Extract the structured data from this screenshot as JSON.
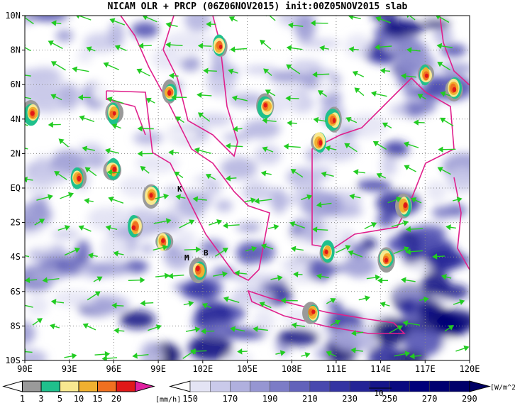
{
  "title": "NICAM OLR + PRCP (06Z06NOV2015) init:00Z05NOV2015 slab",
  "map": {
    "lat_labels": [
      "10N",
      "8N",
      "6N",
      "4N",
      "2N",
      "EQ",
      "2S",
      "4S",
      "6S",
      "8S",
      "10S"
    ],
    "lon_labels": [
      "90E",
      "93E",
      "96E",
      "99E",
      "102E",
      "105E",
      "108E",
      "111E",
      "114E",
      "117E",
      "120E"
    ],
    "places": [
      "K",
      "B",
      "M"
    ]
  },
  "precip_legend": {
    "labels": [
      "1",
      "3",
      "5",
      "10",
      "15",
      "20"
    ],
    "unit": "[mm/h]",
    "colors": [
      "#ffffff",
      "#9a9a9a",
      "#20c08c",
      "#f8e890",
      "#f0b030",
      "#f07020",
      "#e01818",
      "#e020a0"
    ]
  },
  "olr_legend": {
    "labels": [
      "150",
      "170",
      "190",
      "210",
      "230",
      "250",
      "270",
      "290"
    ],
    "unit": "[W/m^2]",
    "colors": [
      "#ffffff",
      "#e4e4f4",
      "#cacaea",
      "#b0b0de",
      "#9696d2",
      "#7c7cc6",
      "#6262ba",
      "#4848ae",
      "#3434a2",
      "#242496",
      "#16168a",
      "#0a0a80",
      "#00007a",
      "#000070",
      "#00006a",
      "#000064"
    ]
  },
  "vector_reference": "10"
}
